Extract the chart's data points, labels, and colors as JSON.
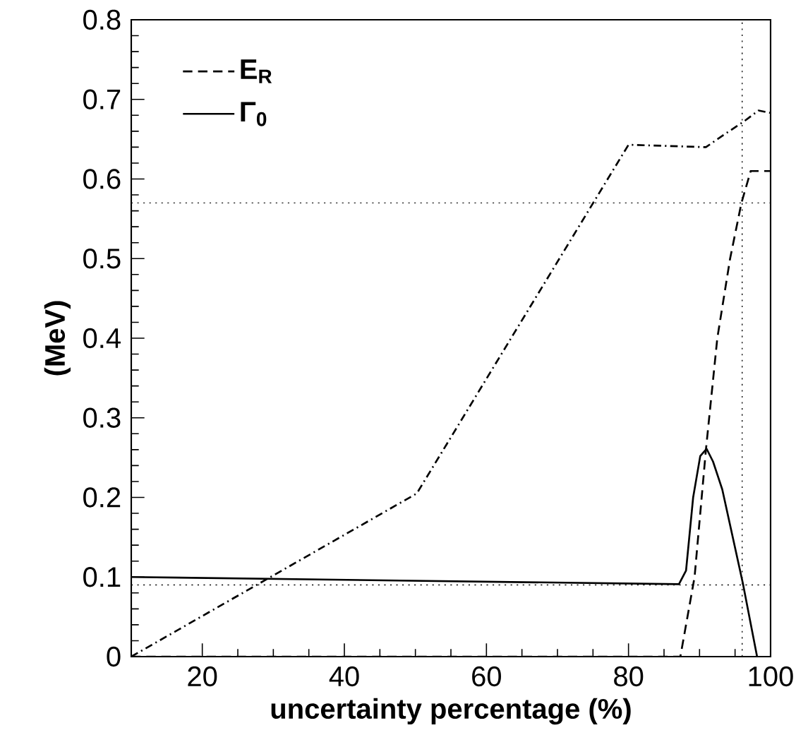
{
  "chart_data": {
    "type": "line",
    "xlabel": "uncertainty percentage (%)",
    "ylabel": "(MeV)",
    "xlim": [
      10,
      100
    ],
    "ylim": [
      0,
      0.8
    ],
    "xticks": [
      20,
      40,
      60,
      80,
      100
    ],
    "yticks": [
      0,
      0.1,
      0.2,
      0.3,
      0.4,
      0.5,
      0.6,
      0.7,
      0.8
    ],
    "legend": "top left",
    "grid": false,
    "marker": "none",
    "series": [
      {
        "name": "**E$_{R}$**",
        "color": "#000000",
        "line_style": "dashed",
        "x": [
          10,
          87.3,
          89.3,
          90.9,
          92.5,
          94.3,
          95.9,
          97.2,
          100
        ],
        "values": [
          0,
          0,
          0.1,
          0.26,
          0.4,
          0.5,
          0.57,
          0.61,
          0.61
        ]
      },
      {
        "name": "Γ$_{0}$",
        "color": "#000000",
        "line_style": "solid",
        "x": [
          10,
          87.1,
          88.1,
          89.1,
          90.1,
          91.0,
          91.9,
          93.2,
          96.1,
          98.1
        ],
        "values": [
          0.1,
          0.091,
          0.108,
          0.2,
          0.252,
          0.261,
          0.245,
          0.21,
          0.092,
          0
        ]
      },
      {
        "color": "#000000",
        "line_style": "dashdot",
        "x": [
          10,
          50.2,
          80.0,
          90.9,
          93.5,
          96.2,
          98.3,
          100
        ],
        "values": [
          0,
          0.205,
          0.643,
          0.64,
          0.656,
          0.672,
          0.686,
          0.683
        ]
      }
    ],
    "ref_lines": [
      {
        "axis": "y",
        "value": 0.57,
        "color": "#000000",
        "line_style": "dotted"
      },
      {
        "axis": "y",
        "value": 0.09,
        "color": "#000000",
        "line_style": "dotted"
      },
      {
        "axis": "x",
        "value": 96,
        "color": "#000000",
        "line_style": "dotted"
      }
    ]
  }
}
